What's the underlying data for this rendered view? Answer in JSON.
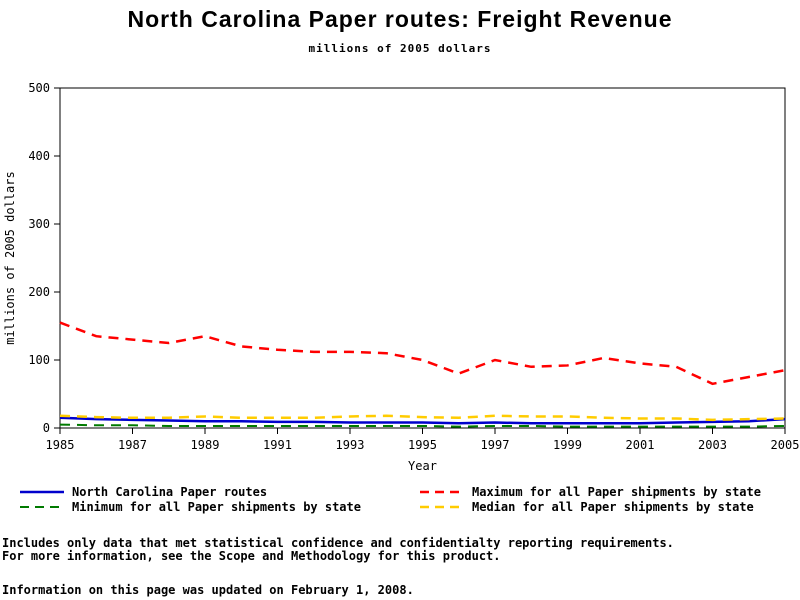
{
  "page": {
    "title": "North Carolina Paper routes: Freight Revenue",
    "subtitle": "millions of 2005 dollars",
    "footnote_line1": "Includes only data that met statistical confidence and confidentialty reporting requirements.",
    "footnote_line2": "For more information, see the Scope and Methodology for this product.",
    "updated_note": "Information on this page was updated on February 1, 2008."
  },
  "chart_data": {
    "type": "line",
    "title": "North Carolina Paper routes: Freight Revenue",
    "subtitle": "millions of 2005 dollars",
    "xlabel": "Year",
    "ylabel": "millions of 2005 dollars",
    "x_range": [
      1985,
      2005
    ],
    "ylim": [
      0,
      500
    ],
    "yticks": [
      0,
      100,
      200,
      300,
      400,
      500
    ],
    "xticks": [
      1985,
      1987,
      1989,
      1991,
      1993,
      1995,
      1997,
      1999,
      2001,
      2003,
      2005
    ],
    "grid": false,
    "legend_position": "bottom",
    "x": [
      1985,
      1986,
      1987,
      1988,
      1989,
      1990,
      1991,
      1992,
      1993,
      1994,
      1995,
      1996,
      1997,
      1998,
      1999,
      2000,
      2001,
      2002,
      2003,
      2004,
      2005
    ],
    "series": [
      {
        "name": "North Carolina Paper routes",
        "color": "#0000cc",
        "dash": "solid",
        "width": 2.5,
        "values": [
          15,
          13,
          12,
          11,
          10,
          10,
          9,
          9,
          8,
          8,
          8,
          7,
          8,
          7,
          7,
          7,
          7,
          8,
          9,
          10,
          13
        ]
      },
      {
        "name": "Maximum for all Paper shipments by state",
        "color": "#ff0000",
        "dash": "dashed",
        "width": 2.5,
        "values": [
          155,
          135,
          130,
          125,
          135,
          120,
          115,
          112,
          112,
          110,
          100,
          80,
          100,
          90,
          92,
          103,
          95,
          90,
          65,
          75,
          85
        ]
      },
      {
        "name": "Minimum for all Paper shipments by state",
        "color": "#007a00",
        "dash": "dashed",
        "width": 2,
        "values": [
          5,
          4,
          4,
          3,
          3,
          3,
          3,
          3,
          3,
          3,
          3,
          2,
          3,
          3,
          2,
          2,
          2,
          2,
          2,
          2,
          3
        ]
      },
      {
        "name": "Median for all Paper shipments by state",
        "color": "#ffcc00",
        "dash": "dashed",
        "width": 2.5,
        "values": [
          18,
          16,
          15,
          15,
          17,
          15,
          15,
          15,
          17,
          18,
          16,
          15,
          18,
          17,
          17,
          15,
          14,
          14,
          12,
          13,
          14
        ]
      }
    ]
  }
}
